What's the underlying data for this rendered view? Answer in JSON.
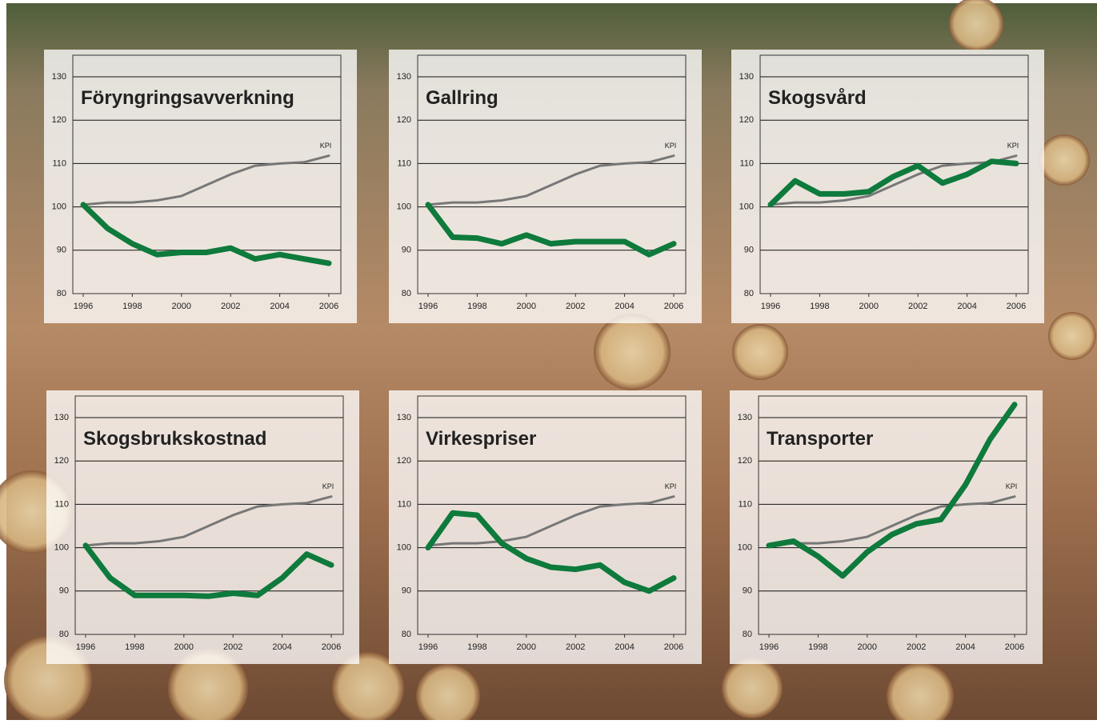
{
  "chart_data": [
    {
      "type": "line",
      "title": "Föryngringsavverkning",
      "x": [
        1996,
        1997,
        1998,
        1999,
        2000,
        2001,
        2002,
        2003,
        2004,
        2005,
        2006
      ],
      "xlim": [
        1996,
        2006
      ],
      "xticks": [
        1996,
        1998,
        2000,
        2002,
        2004,
        2006
      ],
      "ylim": [
        80,
        130
      ],
      "yticks": [
        80,
        90,
        100,
        110,
        120,
        130
      ],
      "grid": true,
      "series": [
        {
          "name": "KPI",
          "color": "#777777",
          "values": [
            100.5,
            101,
            101,
            101.5,
            102.5,
            105,
            107.5,
            109.5,
            110,
            110.3,
            111.8
          ]
        },
        {
          "color": "#0e7a3c",
          "values": [
            100.5,
            95,
            91.5,
            89,
            89.5,
            89.5,
            90.5,
            88,
            89,
            88,
            87
          ]
        }
      ]
    },
    {
      "type": "line",
      "title": "Gallring",
      "x": [
        1996,
        1997,
        1998,
        1999,
        2000,
        2001,
        2002,
        2003,
        2004,
        2005,
        2006
      ],
      "xlim": [
        1996,
        2006
      ],
      "xticks": [
        1996,
        1998,
        2000,
        2002,
        2004,
        2006
      ],
      "ylim": [
        80,
        130
      ],
      "yticks": [
        80,
        90,
        100,
        110,
        120,
        130
      ],
      "grid": true,
      "series": [
        {
          "name": "KPI",
          "color": "#777777",
          "values": [
            100.5,
            101,
            101,
            101.5,
            102.5,
            105,
            107.5,
            109.5,
            110,
            110.3,
            111.8
          ]
        },
        {
          "color": "#0e7a3c",
          "values": [
            100.5,
            93,
            92.8,
            91.5,
            93.5,
            91.5,
            92,
            92,
            92,
            89,
            91.5
          ]
        }
      ]
    },
    {
      "type": "line",
      "title": "Skogsvård",
      "x": [
        1996,
        1997,
        1998,
        1999,
        2000,
        2001,
        2002,
        2003,
        2004,
        2005,
        2006
      ],
      "xlim": [
        1996,
        2006
      ],
      "xticks": [
        1996,
        1998,
        2000,
        2002,
        2004,
        2006
      ],
      "ylim": [
        80,
        130
      ],
      "yticks": [
        80,
        90,
        100,
        110,
        120,
        130
      ],
      "grid": true,
      "series": [
        {
          "name": "KPI",
          "color": "#777777",
          "values": [
            100.5,
            101,
            101,
            101.5,
            102.5,
            105,
            107.5,
            109.5,
            110,
            110.3,
            111.8
          ]
        },
        {
          "color": "#0e7a3c",
          "values": [
            100.5,
            106,
            103,
            103,
            103.5,
            107,
            109.5,
            105.5,
            107.5,
            110.5,
            110
          ]
        }
      ]
    },
    {
      "type": "line",
      "title": "Skogsbrukskostnad",
      "x": [
        1996,
        1997,
        1998,
        1999,
        2000,
        2001,
        2002,
        2003,
        2004,
        2005,
        2006
      ],
      "xlim": [
        1996,
        2006
      ],
      "xticks": [
        1996,
        1998,
        2000,
        2002,
        2004,
        2006
      ],
      "ylim": [
        80,
        130
      ],
      "yticks": [
        80,
        90,
        100,
        110,
        120,
        130
      ],
      "grid": true,
      "series": [
        {
          "name": "KPI",
          "color": "#777777",
          "values": [
            100.5,
            101,
            101,
            101.5,
            102.5,
            105,
            107.5,
            109.5,
            110,
            110.3,
            111.8
          ]
        },
        {
          "color": "#0e7a3c",
          "values": [
            100.5,
            93,
            89,
            89,
            89,
            88.8,
            89.5,
            89,
            93,
            98.5,
            96
          ]
        }
      ]
    },
    {
      "type": "line",
      "title": "Virkespriser",
      "x": [
        1996,
        1997,
        1998,
        1999,
        2000,
        2001,
        2002,
        2003,
        2004,
        2005,
        2006
      ],
      "xlim": [
        1996,
        2006
      ],
      "xticks": [
        1996,
        1998,
        2000,
        2002,
        2004,
        2006
      ],
      "ylim": [
        80,
        130
      ],
      "yticks": [
        80,
        90,
        100,
        110,
        120,
        130
      ],
      "grid": true,
      "series": [
        {
          "name": "KPI",
          "color": "#777777",
          "values": [
            100.5,
            101,
            101,
            101.5,
            102.5,
            105,
            107.5,
            109.5,
            110,
            110.3,
            111.8
          ]
        },
        {
          "color": "#0e7a3c",
          "values": [
            100,
            108,
            107.5,
            101,
            97.5,
            95.5,
            95,
            96,
            92,
            90,
            93
          ]
        }
      ]
    },
    {
      "type": "line",
      "title": "Transporter",
      "x": [
        1996,
        1997,
        1998,
        1999,
        2000,
        2001,
        2002,
        2003,
        2004,
        2005,
        2006
      ],
      "xlim": [
        1996,
        2006
      ],
      "xticks": [
        1996,
        1998,
        2000,
        2002,
        2004,
        2006
      ],
      "ylim": [
        80,
        130
      ],
      "yticks": [
        80,
        90,
        100,
        110,
        120,
        130
      ],
      "grid": true,
      "series": [
        {
          "name": "KPI",
          "color": "#777777",
          "values": [
            100.5,
            101,
            101,
            101.5,
            102.5,
            105,
            107.5,
            109.5,
            110,
            110.3,
            111.8
          ]
        },
        {
          "color": "#0e7a3c",
          "values": [
            100.5,
            101.5,
            98,
            93.5,
            99,
            103,
            105.5,
            106.5,
            114.5,
            125,
            133
          ]
        }
      ]
    }
  ]
}
